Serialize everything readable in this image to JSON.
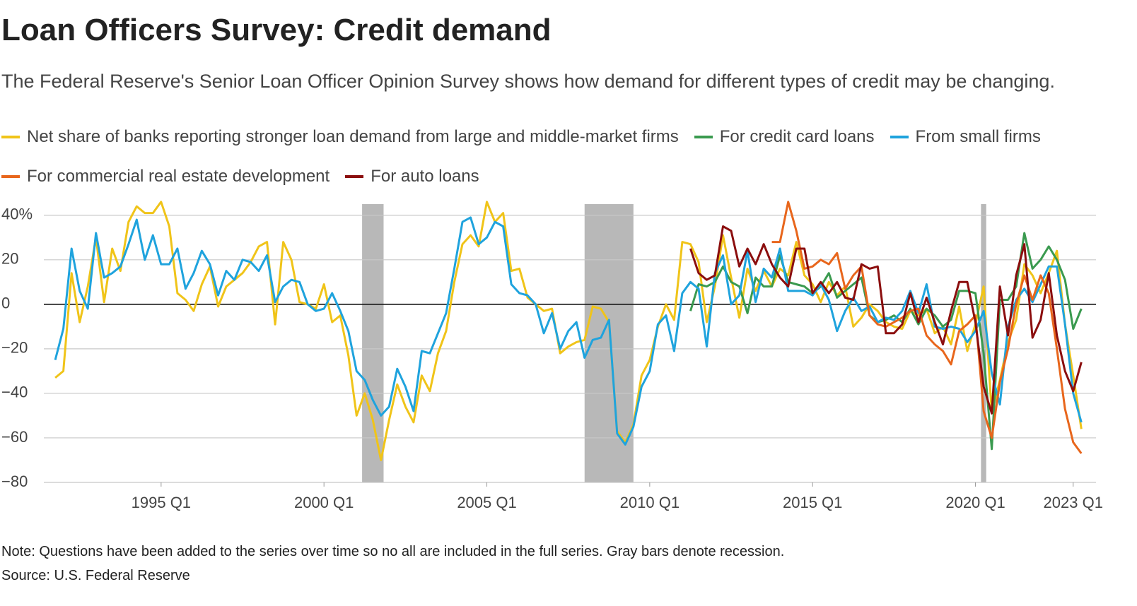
{
  "chart_data": {
    "type": "line",
    "title": "Loan Officers Survey: Credit demand",
    "subtitle": "The Federal Reserve's Senior Loan Officer Opinion Survey shows how demand for different types of credit may be changing.",
    "note": "Note: Questions have been added to the series over time so no all are included in the full series. Gray bars denote recession.",
    "source": "Source: U.S. Federal Reserve",
    "recessions": [
      [
        2001.17,
        2001.83
      ],
      [
        2008.0,
        2009.5
      ],
      [
        2020.17,
        2020.33
      ]
    ],
    "xlim": [
      1991.4,
      2023.7
    ],
    "ylim": [
      -80,
      45
    ],
    "xticks": [
      {
        "value": 1995,
        "label": "1995 Q1"
      },
      {
        "value": 2000,
        "label": "2000 Q1"
      },
      {
        "value": 2005,
        "label": "2005 Q1"
      },
      {
        "value": 2010,
        "label": "2010 Q1"
      },
      {
        "value": 2015,
        "label": "2015 Q1"
      },
      {
        "value": 2020,
        "label": "2020 Q1"
      },
      {
        "value": 2023,
        "label": "2023 Q1"
      }
    ],
    "yticks": [
      {
        "value": 40,
        "label": "40%"
      },
      20,
      0,
      {
        "value": -20,
        "label": "−20"
      },
      {
        "value": -40,
        "label": "−40"
      },
      {
        "value": -60,
        "label": "−60"
      },
      {
        "value": -80,
        "label": "−80"
      }
    ],
    "grid": true,
    "x": [
      1991.75,
      1992,
      1992.25,
      1992.5,
      1992.75,
      1993,
      1993.25,
      1993.5,
      1993.75,
      1994,
      1994.25,
      1994.5,
      1994.75,
      1995,
      1995.25,
      1995.5,
      1995.75,
      1996,
      1996.25,
      1996.5,
      1996.75,
      1997,
      1997.25,
      1997.5,
      1997.75,
      1998,
      1998.25,
      1998.5,
      1998.75,
      1999,
      1999.25,
      1999.5,
      1999.75,
      2000,
      2000.25,
      2000.5,
      2000.75,
      2001,
      2001.25,
      2001.5,
      2001.75,
      2002,
      2002.25,
      2002.5,
      2002.75,
      2003,
      2003.25,
      2003.5,
      2003.75,
      2004,
      2004.25,
      2004.5,
      2004.75,
      2005,
      2005.25,
      2005.5,
      2005.75,
      2006,
      2006.25,
      2006.5,
      2006.75,
      2007,
      2007.25,
      2007.5,
      2007.75,
      2008,
      2008.25,
      2008.5,
      2008.75,
      2009,
      2009.25,
      2009.5,
      2009.75,
      2010,
      2010.25,
      2010.5,
      2010.75,
      2011,
      2011.25,
      2011.5,
      2011.75,
      2012,
      2012.25,
      2012.5,
      2012.75,
      2013,
      2013.25,
      2013.5,
      2013.75,
      2014,
      2014.25,
      2014.5,
      2014.75,
      2015,
      2015.25,
      2015.5,
      2015.75,
      2016,
      2016.25,
      2016.5,
      2016.75,
      2017,
      2017.25,
      2017.5,
      2017.75,
      2018,
      2018.25,
      2018.5,
      2018.75,
      2019,
      2019.25,
      2019.5,
      2019.75,
      2020,
      2020.25,
      2020.5,
      2020.75,
      2021,
      2021.25,
      2021.5,
      2021.75,
      2022,
      2022.25,
      2022.5,
      2022.75,
      2023,
      2023.25
    ],
    "series": [
      {
        "name": "Net share of banks reporting stronger loan demand from large and middle-market firms",
        "color": "#f0c419",
        "values": [
          -33,
          -30,
          14,
          -8,
          8,
          30,
          1,
          25,
          15,
          37,
          44,
          41,
          41,
          46,
          35,
          5,
          2,
          -3,
          9,
          17,
          -1,
          8,
          11,
          14,
          19,
          26,
          28,
          -9,
          28,
          20,
          1,
          0,
          -2,
          9,
          -8,
          -5,
          -23,
          -50,
          -40,
          -52,
          -70,
          -52,
          -36,
          -46,
          -53,
          -32,
          -39,
          -22,
          -12,
          10,
          27,
          31,
          26,
          46,
          37,
          41,
          15,
          16,
          3,
          0,
          -3,
          -2,
          -22,
          -19,
          -17,
          -16,
          -1,
          -2,
          -8,
          -57,
          -62,
          -54,
          -32,
          -25,
          -10,
          0,
          -7,
          28,
          27,
          19,
          -8,
          8,
          31,
          12,
          -6,
          16,
          6,
          15,
          8,
          16,
          13,
          28,
          13,
          9,
          1,
          10,
          4,
          8,
          -10,
          -6,
          0,
          -3,
          -8,
          -10,
          -11,
          -3,
          -5,
          -2,
          -13,
          -10,
          -18,
          -1,
          -21,
          -9,
          8,
          -49,
          -34,
          -17,
          -7,
          18,
          13,
          5,
          14,
          24,
          -9,
          -32,
          -56
        ]
      },
      {
        "name": "For credit card loans",
        "color": "#3a9a4f",
        "values": [
          null,
          null,
          null,
          null,
          null,
          null,
          null,
          null,
          null,
          null,
          null,
          null,
          null,
          null,
          null,
          null,
          null,
          null,
          null,
          null,
          null,
          null,
          null,
          null,
          null,
          null,
          null,
          null,
          null,
          null,
          null,
          null,
          null,
          null,
          null,
          null,
          null,
          null,
          null,
          null,
          null,
          null,
          null,
          null,
          null,
          null,
          null,
          null,
          null,
          null,
          null,
          null,
          null,
          null,
          null,
          null,
          null,
          null,
          null,
          null,
          null,
          null,
          null,
          null,
          null,
          null,
          null,
          null,
          null,
          null,
          null,
          null,
          null,
          null,
          null,
          null,
          null,
          null,
          -3,
          9,
          8,
          10,
          17,
          10,
          8,
          -4,
          12,
          8,
          8,
          22,
          10,
          9,
          8,
          5,
          8,
          14,
          3,
          6,
          9,
          12,
          -5,
          -8,
          -7,
          -5,
          -8,
          -2,
          -9,
          -2,
          -5,
          -10,
          -7,
          6,
          6,
          5,
          -22,
          -65,
          2,
          2,
          8,
          32,
          16,
          20,
          26,
          20,
          11,
          -11,
          -2
        ]
      },
      {
        "name": "From small firms",
        "color": "#1fa3dd",
        "values": [
          -25,
          -11,
          25,
          6,
          -2,
          32,
          12,
          14,
          17,
          27,
          38,
          20,
          31,
          18,
          18,
          25,
          7,
          14,
          24,
          18,
          4,
          15,
          11,
          20,
          19,
          15,
          22,
          1,
          8,
          11,
          10,
          0,
          -3,
          -2,
          5,
          -3,
          -12,
          -30,
          -34,
          -43,
          -50,
          -46,
          -29,
          -37,
          -48,
          -21,
          -22,
          -13,
          -4,
          16,
          37,
          39,
          27,
          30,
          37,
          35,
          9,
          5,
          4,
          0,
          -13,
          -4,
          -20,
          -12,
          -8,
          -24,
          -16,
          -15,
          -7,
          -58,
          -63,
          -55,
          -37,
          -30,
          -9,
          -5,
          -21,
          5,
          10,
          7,
          -19,
          14,
          22,
          0,
          4,
          24,
          1,
          16,
          12,
          25,
          6,
          6,
          6,
          4,
          9,
          2,
          -12,
          -3,
          3,
          -3,
          -1,
          -8,
          -6,
          -7,
          -3,
          6,
          -4,
          9,
          -10,
          -11,
          -10,
          -11,
          -17,
          -12,
          -3,
          -31,
          -45,
          -10,
          2,
          7,
          1,
          9,
          17,
          17,
          -9,
          -40,
          -53
        ]
      },
      {
        "name": "For commercial real estate development",
        "color": "#e8661c",
        "values": [
          null,
          null,
          null,
          null,
          null,
          null,
          null,
          null,
          null,
          null,
          null,
          null,
          null,
          null,
          null,
          null,
          null,
          null,
          null,
          null,
          null,
          null,
          null,
          null,
          null,
          null,
          null,
          null,
          null,
          null,
          null,
          null,
          null,
          null,
          null,
          null,
          null,
          null,
          null,
          null,
          null,
          null,
          null,
          null,
          null,
          null,
          null,
          null,
          null,
          null,
          null,
          null,
          null,
          null,
          null,
          null,
          null,
          null,
          null,
          null,
          null,
          null,
          null,
          null,
          null,
          null,
          null,
          null,
          null,
          null,
          null,
          null,
          null,
          null,
          null,
          null,
          null,
          null,
          null,
          null,
          null,
          null,
          null,
          null,
          null,
          null,
          null,
          null,
          28,
          28,
          46,
          33,
          16,
          17,
          20,
          18,
          23,
          7,
          13,
          17,
          -5,
          -9,
          -10,
          -8,
          -6,
          -3,
          -2,
          -14,
          -18,
          -21,
          -27,
          -12,
          -9,
          -5,
          -48,
          -60,
          -35,
          -20,
          0,
          13,
          2,
          13,
          5,
          -20,
          -47,
          -62,
          -67
        ]
      },
      {
        "name": "For auto loans",
        "color": "#8b0e0e",
        "values": [
          null,
          null,
          null,
          null,
          null,
          null,
          null,
          null,
          null,
          null,
          null,
          null,
          null,
          null,
          null,
          null,
          null,
          null,
          null,
          null,
          null,
          null,
          null,
          null,
          null,
          null,
          null,
          null,
          null,
          null,
          null,
          null,
          null,
          null,
          null,
          null,
          null,
          null,
          null,
          null,
          null,
          null,
          null,
          null,
          null,
          null,
          null,
          null,
          null,
          null,
          null,
          null,
          null,
          null,
          null,
          null,
          null,
          null,
          null,
          null,
          null,
          null,
          null,
          null,
          null,
          null,
          null,
          null,
          null,
          null,
          null,
          null,
          null,
          null,
          null,
          null,
          null,
          null,
          25,
          14,
          11,
          13,
          35,
          33,
          17,
          25,
          18,
          27,
          18,
          12,
          8,
          25,
          25,
          5,
          10,
          5,
          10,
          3,
          2,
          18,
          16,
          17,
          -13,
          -13,
          -9,
          5,
          -8,
          3,
          -8,
          -18,
          -3,
          10,
          10,
          -8,
          -37,
          -49,
          8,
          -14,
          13,
          27,
          -15,
          -7,
          14,
          -14,
          -30,
          -39,
          -26
        ]
      }
    ]
  }
}
